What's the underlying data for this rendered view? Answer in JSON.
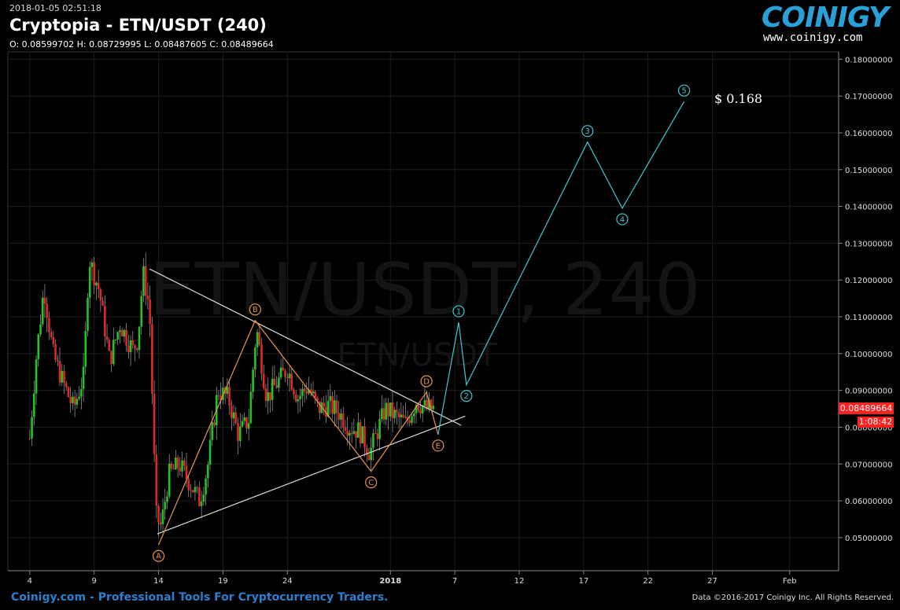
{
  "header": {
    "timestamp": "2018-01-05 02:51:18",
    "title": "Cryptopia - ETN/USDT (240)",
    "ohlc": "O: 0.08599702 H: 0.08729995 L: 0.08487605 C: 0.08489664"
  },
  "logo": {
    "name": "COINIGY",
    "url": "www.coinigy.com"
  },
  "footer": {
    "left": "Coinigy.com - Professional Tools For Cryptocurrency Traders.",
    "right": "Data ©2016-2017 Coinigy Inc. All Rights Reserved."
  },
  "watermark": {
    "main": "ETN/USDT, 240",
    "sub": "ETN/USDT"
  },
  "price_tag": {
    "price": "0.08489664",
    "countdown": "1:08:42"
  },
  "target_label": "$ 0.168",
  "colors": {
    "up": "#22c322",
    "down": "#e02828",
    "wave_orange": "#e8944a",
    "wave_cyan": "#3fc8d8",
    "trend": "#dddddd",
    "accent": "#ff2020"
  },
  "chart_data": {
    "type": "candlestick",
    "title": "Cryptopia - ETN/USDT (240)",
    "y_tick_labels": [
      "0.05000000",
      "0.06000000",
      "0.07000000",
      "0.08000000",
      "0.09000000",
      "0.10000000",
      "0.11000000",
      "0.12000000",
      "0.13000000",
      "0.14000000",
      "0.15000000",
      "0.16000000",
      "0.17000000",
      "0.18000000"
    ],
    "ylim": [
      0.041,
      0.182
    ],
    "x_tick_labels": [
      "4",
      "9",
      "14",
      "19",
      "24",
      "2018",
      "7",
      "12",
      "17",
      "22",
      "27",
      "Feb"
    ],
    "x_tick_days": [
      4,
      9,
      14,
      19,
      24,
      32,
      37,
      42,
      47,
      52,
      57,
      63
    ],
    "xlim_days": [
      2.3,
      66.8
    ],
    "price_path": [
      [
        4.0,
        0.077
      ],
      [
        4.5,
        0.099
      ],
      [
        5.1,
        0.118
      ],
      [
        5.8,
        0.1
      ],
      [
        6.6,
        0.092
      ],
      [
        7.4,
        0.085
      ],
      [
        8.2,
        0.094
      ],
      [
        8.6,
        0.126
      ],
      [
        9.4,
        0.117
      ],
      [
        10.2,
        0.098
      ],
      [
        11.0,
        0.108
      ],
      [
        12.0,
        0.101
      ],
      [
        12.4,
        0.104
      ],
      [
        12.8,
        0.122
      ],
      [
        13.3,
        0.112
      ],
      [
        13.8,
        0.056
      ],
      [
        14.2,
        0.053
      ],
      [
        14.8,
        0.067
      ],
      [
        15.6,
        0.07
      ],
      [
        16.4,
        0.065
      ],
      [
        17.2,
        0.06
      ],
      [
        17.8,
        0.069
      ],
      [
        18.6,
        0.09
      ],
      [
        19.4,
        0.088
      ],
      [
        20.2,
        0.078
      ],
      [
        21.0,
        0.082
      ],
      [
        21.6,
        0.107
      ],
      [
        22.4,
        0.088
      ],
      [
        23.2,
        0.092
      ],
      [
        24.0,
        0.096
      ],
      [
        24.8,
        0.088
      ],
      [
        25.6,
        0.091
      ],
      [
        26.4,
        0.085
      ],
      [
        27.2,
        0.086
      ],
      [
        28.0,
        0.084
      ],
      [
        28.8,
        0.08
      ],
      [
        29.6,
        0.079
      ],
      [
        30.4,
        0.073
      ],
      [
        31.0,
        0.079
      ],
      [
        31.6,
        0.085
      ],
      [
        32.4,
        0.083
      ],
      [
        33.2,
        0.081
      ],
      [
        34.0,
        0.087
      ],
      [
        34.8,
        0.085
      ],
      [
        35.4,
        0.085
      ]
    ],
    "trend_lines": [
      {
        "from": [
          13.3,
          0.123
        ],
        "to": [
          37.5,
          0.0805
        ]
      },
      {
        "from": [
          13.9,
          0.051
        ],
        "to": [
          37.8,
          0.083
        ]
      }
    ],
    "wave_abcde": [
      {
        "label": "A",
        "x": 14.0,
        "y": 0.048
      },
      {
        "label": "B",
        "x": 21.5,
        "y": 0.109
      },
      {
        "label": "C",
        "x": 30.5,
        "y": 0.068
      },
      {
        "label": "D",
        "x": 34.8,
        "y": 0.0895
      },
      {
        "label": "E",
        "x": 35.7,
        "y": 0.078
      }
    ],
    "wave_12345": [
      {
        "label": "1",
        "x": 37.3,
        "y": 0.1085
      },
      {
        "label": "2",
        "x": 37.9,
        "y": 0.0915
      },
      {
        "label": "3",
        "x": 47.3,
        "y": 0.1575
      },
      {
        "label": "4",
        "x": 50.0,
        "y": 0.1395
      },
      {
        "label": "5",
        "x": 54.8,
        "y": 0.1685
      }
    ],
    "wave_12345_start": {
      "x": 35.7,
      "y": 0.078
    }
  }
}
